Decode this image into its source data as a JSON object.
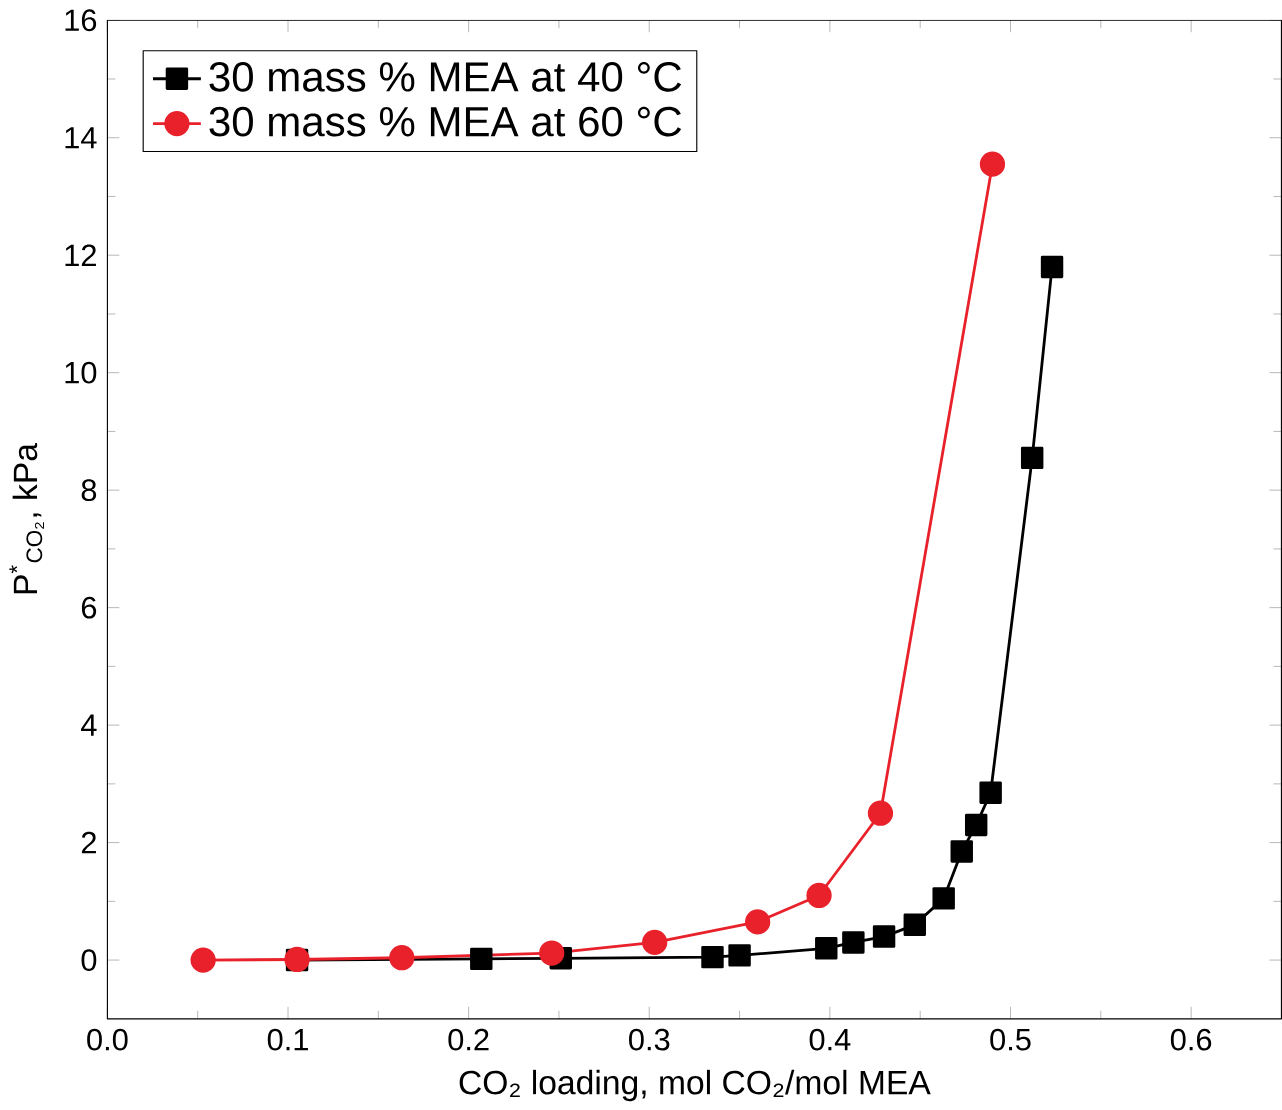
{
  "chart_data": {
    "type": "line",
    "xlabel": "CO₂ loading, mol CO₂/mol MEA",
    "ylabel": "P$^{*}$$_{CO₂}$, kPa",
    "xlim": [
      0,
      0.65
    ],
    "xticks": [
      {
        "value": 0,
        "label": "0.0"
      },
      0.1,
      0.2,
      0.3,
      0.4,
      0.5,
      0.6
    ],
    "ylim": [
      -1,
      16
    ],
    "yticks": [
      0,
      2,
      4,
      6,
      8,
      10,
      12,
      14,
      16
    ],
    "legend": "top left",
    "line_style": "solid",
    "series": [
      {
        "name": "30 mass % MEA at 40 °C",
        "color": "#000000",
        "marker": "square",
        "x": [
          0.105,
          0.207,
          0.251,
          0.335,
          0.35,
          0.398,
          0.413,
          0.43,
          0.447,
          0.463,
          0.473,
          0.481,
          0.489,
          0.512,
          0.523
        ],
        "values": [
          0.0,
          0.02,
          0.03,
          0.05,
          0.08,
          0.2,
          0.3,
          0.4,
          0.6,
          1.05,
          1.85,
          2.3,
          2.85,
          8.55,
          11.8
        ]
      },
      {
        "name": "30 mass % MEA at 60 °C",
        "color": "#e8212b",
        "marker": "circle",
        "x": [
          0.053,
          0.105,
          0.163,
          0.246,
          0.303,
          0.36,
          0.394,
          0.428,
          0.49
        ],
        "values": [
          0.0,
          0.01,
          0.04,
          0.12,
          0.3,
          0.65,
          1.1,
          2.5,
          13.55
        ]
      }
    ]
  }
}
